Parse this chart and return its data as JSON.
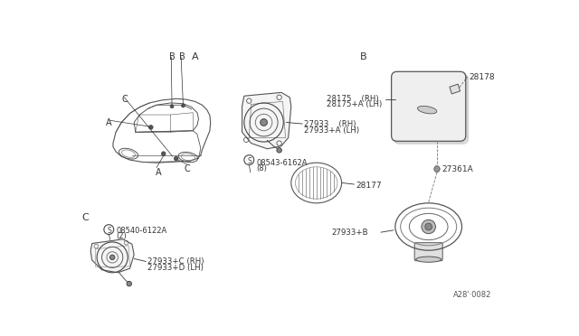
{
  "bg_color": "#FFFFFF",
  "fig_width": 6.4,
  "fig_height": 3.72,
  "labels": {
    "part_27933_RH": "27933    (RH)",
    "part_27933A_LH": "27933+A (LH)",
    "part_08543": "08543-6162A",
    "part_08543_qty": "(8)",
    "part_28177": "28177",
    "part_28178": "28178",
    "part_28175_RH": "28175    (RH)",
    "part_28175A_LH": "28175+A (LH)",
    "part_27361A": "27361A",
    "part_27933B": "27933+B",
    "part_08540": "08540-6122A",
    "part_08540_qty": "(2)",
    "part_27933C_RH": "27933+C (RH)",
    "part_27933D_LH": "27933+D (LH)",
    "footer": "A28'·0082",
    "sec_A": "A",
    "sec_B": "B",
    "sec_C": "C",
    "label_A": "A",
    "label_B": "B",
    "label_C": "C"
  }
}
